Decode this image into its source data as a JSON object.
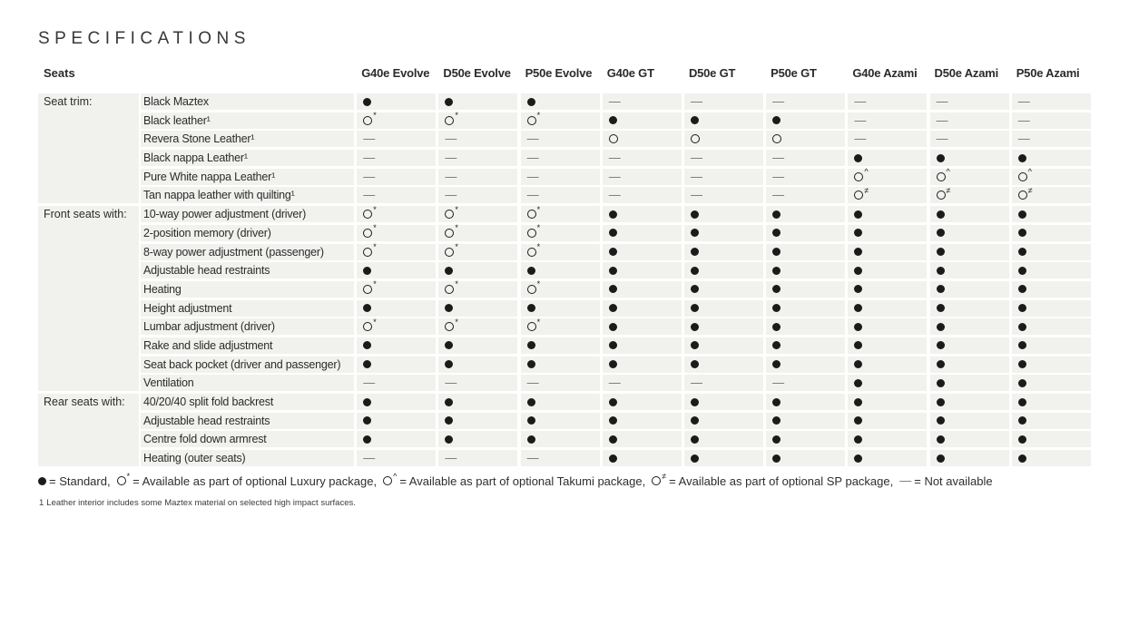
{
  "page_title": "SPECIFICATIONS",
  "colors": {
    "row_stripe": "#f1f1ee",
    "text": "#2e2e2e",
    "symbol": "#1b1b1b",
    "dash": "#6f6f6f"
  },
  "symbols": {
    "S": {
      "name": "standard",
      "shape": "filled",
      "glyph": "●",
      "sup": ""
    },
    "L": {
      "name": "luxury-package-option",
      "shape": "open",
      "glyph": "○",
      "sup": "*"
    },
    "T": {
      "name": "takumi-package-option",
      "shape": "open",
      "glyph": "○",
      "sup": "^"
    },
    "P": {
      "name": "sp-package-option",
      "shape": "open",
      "glyph": "○",
      "sup": "≠"
    },
    "O": {
      "name": "optional",
      "shape": "open",
      "glyph": "○",
      "sup": ""
    },
    "N": {
      "name": "not-available",
      "shape": "dash",
      "glyph": "—",
      "sup": ""
    }
  },
  "table": {
    "section_header": "Seats",
    "columns": [
      "G40e Evolve",
      "D50e Evolve",
      "P50e Evolve",
      "G40e GT",
      "D50e GT",
      "P50e GT",
      "G40e Azami",
      "D50e Azami",
      "P50e Azami"
    ],
    "groups": [
      {
        "label": "Seat trim:",
        "rows": [
          {
            "feature": "Black Maztex",
            "values": [
              "S",
              "S",
              "S",
              "N",
              "N",
              "N",
              "N",
              "N",
              "N"
            ]
          },
          {
            "feature": "Black leather¹",
            "values": [
              "L",
              "L",
              "L",
              "S",
              "S",
              "S",
              "N",
              "N",
              "N"
            ]
          },
          {
            "feature": "Revera Stone Leather¹",
            "values": [
              "N",
              "N",
              "N",
              "O",
              "O",
              "O",
              "N",
              "N",
              "N"
            ]
          },
          {
            "feature": "Black nappa Leather¹",
            "values": [
              "N",
              "N",
              "N",
              "N",
              "N",
              "N",
              "S",
              "S",
              "S"
            ]
          },
          {
            "feature": "Pure White nappa Leather¹",
            "values": [
              "N",
              "N",
              "N",
              "N",
              "N",
              "N",
              "T",
              "T",
              "T"
            ]
          },
          {
            "feature": "Tan nappa leather with quilting¹",
            "values": [
              "N",
              "N",
              "N",
              "N",
              "N",
              "N",
              "P",
              "P",
              "P"
            ]
          }
        ]
      },
      {
        "label": "Front seats with:",
        "rows": [
          {
            "feature": "10-way power adjustment (driver)",
            "values": [
              "L",
              "L",
              "L",
              "S",
              "S",
              "S",
              "S",
              "S",
              "S"
            ]
          },
          {
            "feature": "2-position memory (driver)",
            "values": [
              "L",
              "L",
              "L",
              "S",
              "S",
              "S",
              "S",
              "S",
              "S"
            ]
          },
          {
            "feature": "8-way power adjustment (passenger)",
            "values": [
              "L",
              "L",
              "L",
              "S",
              "S",
              "S",
              "S",
              "S",
              "S"
            ]
          },
          {
            "feature": "Adjustable head restraints",
            "values": [
              "S",
              "S",
              "S",
              "S",
              "S",
              "S",
              "S",
              "S",
              "S"
            ]
          },
          {
            "feature": "Heating",
            "values": [
              "L",
              "L",
              "L",
              "S",
              "S",
              "S",
              "S",
              "S",
              "S"
            ]
          },
          {
            "feature": "Height adjustment",
            "values": [
              "S",
              "S",
              "S",
              "S",
              "S",
              "S",
              "S",
              "S",
              "S"
            ]
          },
          {
            "feature": "Lumbar adjustment (driver)",
            "values": [
              "L",
              "L",
              "L",
              "S",
              "S",
              "S",
              "S",
              "S",
              "S"
            ]
          },
          {
            "feature": "Rake and slide adjustment",
            "values": [
              "S",
              "S",
              "S",
              "S",
              "S",
              "S",
              "S",
              "S",
              "S"
            ]
          },
          {
            "feature": "Seat back pocket (driver and passenger)",
            "values": [
              "S",
              "S",
              "S",
              "S",
              "S",
              "S",
              "S",
              "S",
              "S"
            ]
          },
          {
            "feature": "Ventilation",
            "values": [
              "N",
              "N",
              "N",
              "N",
              "N",
              "N",
              "S",
              "S",
              "S"
            ]
          }
        ]
      },
      {
        "label": "Rear seats with:",
        "rows": [
          {
            "feature": "40/20/40 split fold backrest",
            "values": [
              "S",
              "S",
              "S",
              "S",
              "S",
              "S",
              "S",
              "S",
              "S"
            ]
          },
          {
            "feature": "Adjustable head restraints",
            "values": [
              "S",
              "S",
              "S",
              "S",
              "S",
              "S",
              "S",
              "S",
              "S"
            ]
          },
          {
            "feature": "Centre fold down armrest",
            "values": [
              "S",
              "S",
              "S",
              "S",
              "S",
              "S",
              "S",
              "S",
              "S"
            ]
          },
          {
            "feature": "Heating (outer seats)",
            "values": [
              "N",
              "N",
              "N",
              "S",
              "S",
              "S",
              "S",
              "S",
              "S"
            ]
          }
        ]
      }
    ]
  },
  "legend": {
    "items": [
      {
        "symbol": "S",
        "meaning": "Standard"
      },
      {
        "symbol": "L",
        "meaning": "Available as part of optional Luxury package"
      },
      {
        "symbol": "T",
        "meaning": "Available as part of optional Takumi package"
      },
      {
        "symbol": "P",
        "meaning": "Available as part of optional SP package"
      },
      {
        "symbol": "N",
        "meaning": "Not available"
      }
    ]
  },
  "footnote": {
    "marker": "1",
    "text": "Leather interior includes some Maztex material on selected high impact surfaces."
  }
}
